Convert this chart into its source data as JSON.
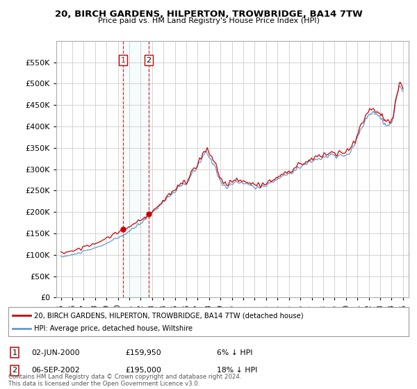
{
  "title": "20, BIRCH GARDENS, HILPERTON, TROWBRIDGE, BA14 7TW",
  "subtitle": "Price paid vs. HM Land Registry's House Price Index (HPI)",
  "legend_line1": "20, BIRCH GARDENS, HILPERTON, TROWBRIDGE, BA14 7TW (detached house)",
  "legend_line2": "HPI: Average price, detached house, Wiltshire",
  "sale1_date": "02-JUN-2000",
  "sale1_price": "£159,950",
  "sale1_hpi": "6% ↓ HPI",
  "sale2_date": "06-SEP-2002",
  "sale2_price": "£195,000",
  "sale2_hpi": "18% ↓ HPI",
  "footer": "Contains HM Land Registry data © Crown copyright and database right 2024.\nThis data is licensed under the Open Government Licence v3.0.",
  "ylim": [
    0,
    600000
  ],
  "yticks": [
    0,
    50000,
    100000,
    150000,
    200000,
    250000,
    300000,
    350000,
    400000,
    450000,
    500000,
    550000
  ],
  "red_color": "#cc0000",
  "blue_color": "#6699cc",
  "background_color": "#ffffff",
  "grid_color": "#cccccc",
  "sale1_year": 2000.458,
  "sale2_year": 2002.708
}
